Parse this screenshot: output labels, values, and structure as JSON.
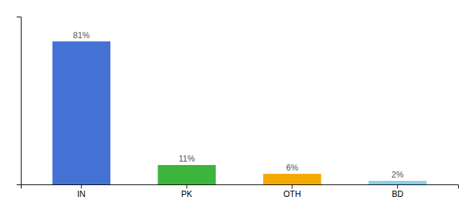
{
  "chart_data": {
    "type": "bar",
    "categories": [
      "IN",
      "PK",
      "OTH",
      "BD"
    ],
    "values": [
      81,
      11,
      6,
      2
    ],
    "value_labels": [
      "81%",
      "11%",
      "6%",
      "2%"
    ],
    "data_labels": true,
    "colors": [
      "#4472d4",
      "#3db53d",
      "#f5a800",
      "#87ceeb"
    ],
    "ylim": [
      0,
      95
    ],
    "tick_labels": "x"
  }
}
